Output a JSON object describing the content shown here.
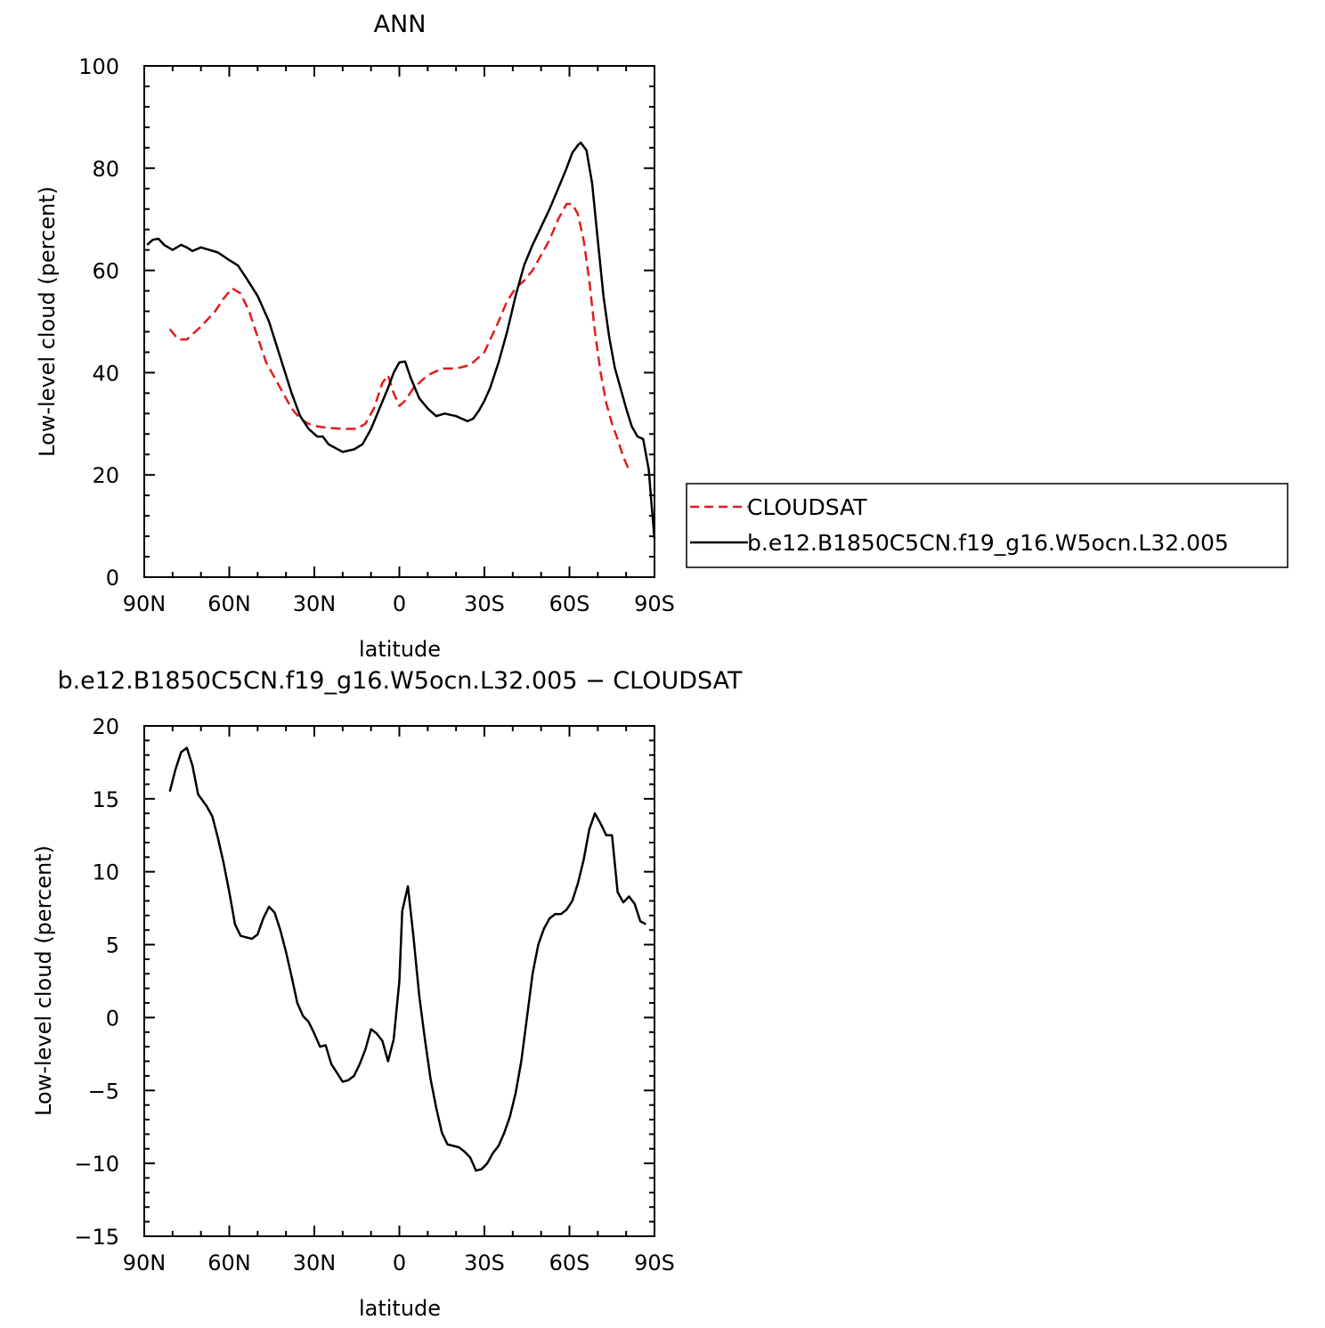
{
  "chart_data": [
    {
      "type": "line",
      "title": "ANN",
      "xlabel": "latitude",
      "ylabel": "Low-level cloud (percent)",
      "xlim": [
        90,
        -90
      ],
      "ylim": [
        0,
        100
      ],
      "xticks": [
        {
          "value": 90,
          "label": "90N"
        },
        {
          "value": 60,
          "label": "60N"
        },
        {
          "value": 30,
          "label": "30N"
        },
        {
          "value": 0,
          "label": "0"
        },
        {
          "value": -30,
          "label": "30S"
        },
        {
          "value": -60,
          "label": "60S"
        },
        {
          "value": -90,
          "label": "90S"
        }
      ],
      "yticks": [
        0,
        20,
        40,
        60,
        80,
        100
      ],
      "legend": {
        "placement": "right",
        "entries": [
          "CLOUDSAT",
          "b.e12.B1850C5CN.f19_g16.W5ocn.L32.005"
        ]
      },
      "series": [
        {
          "name": "CLOUDSAT",
          "color": "#e41a1c",
          "style": "dashed",
          "points": [
            [
              81,
              48.5
            ],
            [
              78,
              46.5
            ],
            [
              75,
              46.5
            ],
            [
              70,
              49
            ],
            [
              65,
              52
            ],
            [
              62,
              54.5
            ],
            [
              59,
              56.5
            ],
            [
              56,
              55.5
            ],
            [
              53,
              52
            ],
            [
              50,
              47
            ],
            [
              47,
              42
            ],
            [
              44,
              39
            ],
            [
              41,
              36
            ],
            [
              38,
              33
            ],
            [
              35,
              31
            ],
            [
              32,
              30
            ],
            [
              29,
              29.5
            ],
            [
              25,
              29.2
            ],
            [
              20,
              29
            ],
            [
              15,
              29
            ],
            [
              12,
              30
            ],
            [
              9,
              33
            ],
            [
              6,
              38
            ],
            [
              4,
              39.5
            ],
            [
              2,
              36
            ],
            [
              0,
              33.5
            ],
            [
              -2,
              34.5
            ],
            [
              -5,
              37
            ],
            [
              -10,
              39.5
            ],
            [
              -15,
              40.8
            ],
            [
              -20,
              40.8
            ],
            [
              -25,
              41.5
            ],
            [
              -30,
              44
            ],
            [
              -35,
              50
            ],
            [
              -38,
              54
            ],
            [
              -41,
              56.5
            ],
            [
              -44,
              58
            ],
            [
              -47,
              60
            ],
            [
              -50,
              63
            ],
            [
              -53,
              66
            ],
            [
              -56,
              70
            ],
            [
              -59,
              73
            ],
            [
              -61,
              73
            ],
            [
              -63,
              71
            ],
            [
              -65,
              66
            ],
            [
              -67,
              58
            ],
            [
              -69,
              48
            ],
            [
              -71,
              40
            ],
            [
              -73,
              34
            ],
            [
              -75,
              30
            ],
            [
              -77,
              27
            ],
            [
              -79,
              23.5
            ],
            [
              -81,
              21
            ]
          ]
        },
        {
          "name": "b.e12.B1850C5CN.f19_g16.W5ocn.L32.005",
          "color": "#000000",
          "style": "solid",
          "points": [
            [
              89,
              65
            ],
            [
              87,
              66
            ],
            [
              85,
              66.2
            ],
            [
              83,
              65
            ],
            [
              80,
              64
            ],
            [
              77,
              65
            ],
            [
              75,
              64.5
            ],
            [
              73,
              63.8
            ],
            [
              70,
              64.5
            ],
            [
              67,
              64
            ],
            [
              64,
              63.5
            ],
            [
              60,
              62
            ],
            [
              57,
              61
            ],
            [
              54,
              58.5
            ],
            [
              50,
              55
            ],
            [
              46,
              50
            ],
            [
              42,
              43
            ],
            [
              38,
              36
            ],
            [
              35,
              31.5
            ],
            [
              32,
              29
            ],
            [
              29,
              27.5
            ],
            [
              27,
              27.5
            ],
            [
              25,
              26
            ],
            [
              20,
              24.5
            ],
            [
              16,
              25
            ],
            [
              13,
              26
            ],
            [
              10,
              29
            ],
            [
              7,
              33
            ],
            [
              4,
              37
            ],
            [
              2,
              40
            ],
            [
              0,
              42
            ],
            [
              -2,
              42.2
            ],
            [
              -4,
              39
            ],
            [
              -7,
              35
            ],
            [
              -10,
              33
            ],
            [
              -13,
              31.5
            ],
            [
              -16,
              32
            ],
            [
              -20,
              31.5
            ],
            [
              -24,
              30.5
            ],
            [
              -26,
              31
            ],
            [
              -28,
              32.5
            ],
            [
              -30,
              34.5
            ],
            [
              -32,
              37
            ],
            [
              -35,
              42
            ],
            [
              -38,
              48
            ],
            [
              -41,
              55
            ],
            [
              -44,
              61
            ],
            [
              -47,
              65
            ],
            [
              -50,
              68.5
            ],
            [
              -53,
              72
            ],
            [
              -56,
              76
            ],
            [
              -59,
              80
            ],
            [
              -61,
              83
            ],
            [
              -63,
              84.5
            ],
            [
              -64,
              85
            ],
            [
              -66,
              83.5
            ],
            [
              -68,
              77
            ],
            [
              -70,
              66
            ],
            [
              -72,
              55
            ],
            [
              -74,
              47
            ],
            [
              -76,
              41
            ],
            [
              -78,
              37
            ],
            [
              -80,
              33
            ],
            [
              -82,
              29.5
            ],
            [
              -84,
              27.5
            ],
            [
              -86,
              27
            ],
            [
              -88,
              21
            ],
            [
              -89,
              14
            ],
            [
              -90,
              7.5
            ]
          ]
        }
      ]
    },
    {
      "type": "line",
      "title": "b.e12.B1850C5CN.f19_g16.W5ocn.L32.005 − CLOUDSAT",
      "xlabel": "latitude",
      "ylabel": "Low-level cloud (percent)",
      "xlim": [
        90,
        -90
      ],
      "ylim": [
        -15,
        20
      ],
      "xticks": [
        {
          "value": 90,
          "label": "90N"
        },
        {
          "value": 60,
          "label": "60N"
        },
        {
          "value": 30,
          "label": "30N"
        },
        {
          "value": 0,
          "label": "0"
        },
        {
          "value": -30,
          "label": "30S"
        },
        {
          "value": -60,
          "label": "60S"
        },
        {
          "value": -90,
          "label": "90S"
        }
      ],
      "yticks": [
        -15,
        -10,
        -5,
        0,
        5,
        10,
        15,
        20
      ],
      "series": [
        {
          "color": "#000000",
          "style": "solid",
          "points": [
            [
              81,
              15.5
            ],
            [
              79,
              17
            ],
            [
              77,
              18.2
            ],
            [
              75,
              18.5
            ],
            [
              73,
              17.3
            ],
            [
              71,
              15.3
            ],
            [
              68,
              14.5
            ],
            [
              66,
              13.8
            ],
            [
              64,
              12.3
            ],
            [
              62,
              10.6
            ],
            [
              60,
              8.6
            ],
            [
              58,
              6.4
            ],
            [
              56,
              5.6
            ],
            [
              54,
              5.5
            ],
            [
              52,
              5.4
            ],
            [
              50,
              5.7
            ],
            [
              48,
              6.8
            ],
            [
              46,
              7.6
            ],
            [
              44,
              7.2
            ],
            [
              42,
              6
            ],
            [
              40,
              4.5
            ],
            [
              38,
              2.8
            ],
            [
              36,
              1
            ],
            [
              34,
              0.1
            ],
            [
              32,
              -0.3
            ],
            [
              30,
              -1.1
            ],
            [
              28,
              -2
            ],
            [
              26,
              -1.9
            ],
            [
              24,
              -3.2
            ],
            [
              22,
              -3.8
            ],
            [
              20,
              -4.4
            ],
            [
              18,
              -4.3
            ],
            [
              16,
              -4
            ],
            [
              14,
              -3.2
            ],
            [
              12,
              -2.2
            ],
            [
              10,
              -0.8
            ],
            [
              8,
              -1.1
            ],
            [
              6,
              -1.6
            ],
            [
              4,
              -3
            ],
            [
              2,
              -1.5
            ],
            [
              0,
              2.5
            ],
            [
              -1,
              7.3
            ],
            [
              -3,
              9
            ],
            [
              -5,
              5.5
            ],
            [
              -7,
              1.5
            ],
            [
              -9,
              -1.5
            ],
            [
              -11,
              -4.2
            ],
            [
              -13,
              -6.2
            ],
            [
              -15,
              -7.9
            ],
            [
              -17,
              -8.7
            ],
            [
              -19,
              -8.8
            ],
            [
              -21,
              -8.9
            ],
            [
              -23,
              -9.2
            ],
            [
              -25,
              -9.6
            ],
            [
              -27,
              -10.5
            ],
            [
              -29,
              -10.4
            ],
            [
              -31,
              -10
            ],
            [
              -33,
              -9.3
            ],
            [
              -35,
              -8.8
            ],
            [
              -37,
              -7.9
            ],
            [
              -39,
              -6.8
            ],
            [
              -41,
              -5.2
            ],
            [
              -43,
              -3
            ],
            [
              -45,
              0
            ],
            [
              -47,
              3
            ],
            [
              -49,
              5
            ],
            [
              -51,
              6.1
            ],
            [
              -53,
              6.8
            ],
            [
              -55,
              7.1
            ],
            [
              -57,
              7.1
            ],
            [
              -59,
              7.4
            ],
            [
              -61,
              8
            ],
            [
              -63,
              9.2
            ],
            [
              -65,
              10.8
            ],
            [
              -67,
              12.9
            ],
            [
              -69,
              14
            ],
            [
              -71,
              13.3
            ],
            [
              -73,
              12.5
            ],
            [
              -75,
              12.5
            ],
            [
              -77,
              8.6
            ],
            [
              -79,
              7.9
            ],
            [
              -81,
              8.3
            ],
            [
              -83,
              7.8
            ],
            [
              -85,
              6.6
            ],
            [
              -87,
              6.4
            ]
          ]
        }
      ]
    }
  ]
}
